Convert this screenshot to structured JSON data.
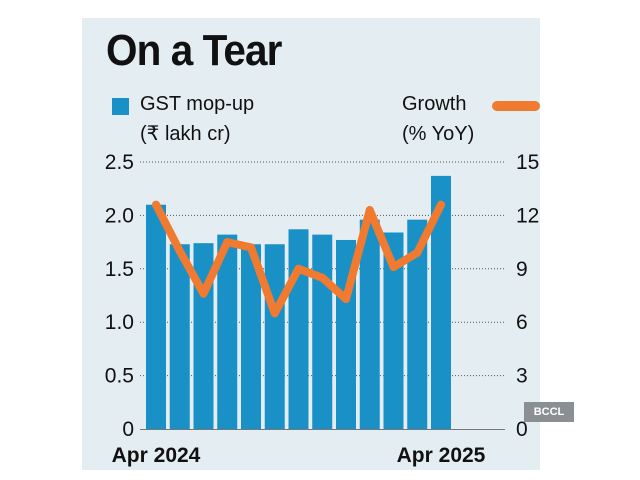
{
  "title": "On a Tear",
  "legend": {
    "bar_label_1": "GST mop-up",
    "bar_label_2": "(₹ lakh cr)",
    "line_label_1": "Growth",
    "line_label_2": "(% YoY)"
  },
  "credit": "BCCL",
  "colors": {
    "bar": "#1a91c6",
    "line": "#f07a30",
    "background_panel": "#e4edf2"
  },
  "chart_data": {
    "type": "bar",
    "title": "On a Tear",
    "x_tick_labels": [
      "Apr 2024",
      "Apr 2025"
    ],
    "x_tick_indices": [
      0,
      12
    ],
    "categories": [
      "Apr 2024",
      "",
      "",
      "",
      "",
      "",
      "",
      "",
      "",
      "",
      "",
      "",
      "Apr 2025"
    ],
    "series": [
      {
        "name": "GST mop-up (₹ lakh cr)",
        "type": "bar",
        "axis": "left",
        "values": [
          2.1,
          1.73,
          1.74,
          1.82,
          1.73,
          1.73,
          1.87,
          1.82,
          1.77,
          1.96,
          1.84,
          1.96,
          2.37
        ]
      },
      {
        "name": "Growth (% YoY)",
        "type": "line",
        "axis": "right",
        "values": [
          12.6,
          10.0,
          7.6,
          10.5,
          10.2,
          6.5,
          9.0,
          8.5,
          7.3,
          12.3,
          9.1,
          9.9,
          12.6
        ]
      }
    ],
    "y_left": {
      "ticks": [
        0,
        0.5,
        1.0,
        1.5,
        2.0,
        2.5
      ],
      "tick_labels": [
        "0",
        "0.5",
        "1.0",
        "1.5",
        "2.0",
        "2.5"
      ],
      "ylim": [
        0,
        2.5
      ]
    },
    "y_right": {
      "ticks": [
        0,
        3,
        6,
        9,
        12,
        15
      ],
      "tick_labels": [
        "0",
        "3",
        "6",
        "9",
        "12",
        "15"
      ],
      "ylim": [
        0,
        15
      ]
    },
    "grid": "dotted horizontal"
  }
}
